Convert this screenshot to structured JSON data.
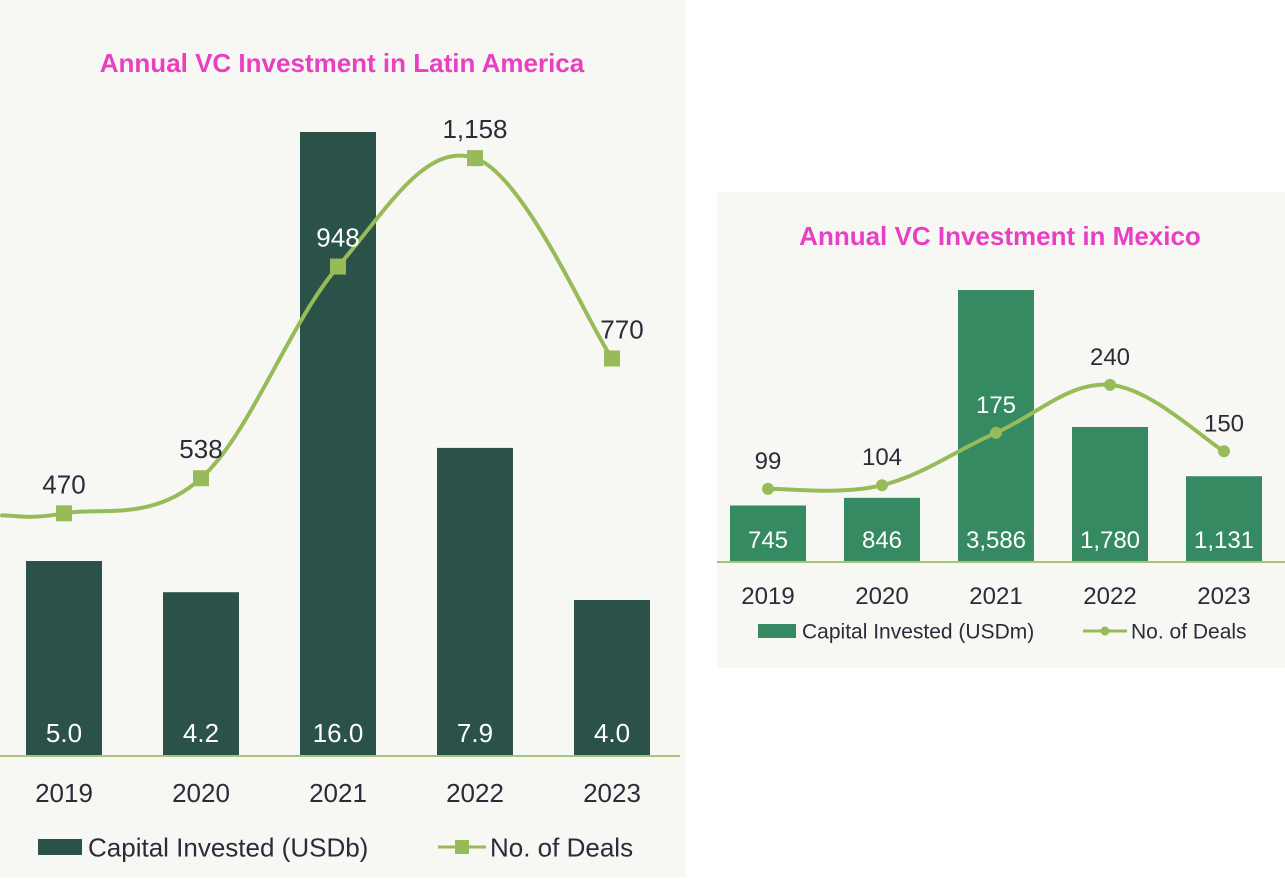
{
  "colors": {
    "title": "#e83fc3",
    "latam_bar": "#2a5248",
    "mexico_bar": "#358a61",
    "deals_line": "#97bb59",
    "panel_bg": "#f7f8f4",
    "axis": "#a9c27b",
    "text_dark": "#2b2b3a",
    "text_on_bar": "#ffffff"
  },
  "chart_data": [
    {
      "type": "bar",
      "title": "Annual VC Investment in Latin America",
      "categories": [
        "2019",
        "2020",
        "2021",
        "2022",
        "2023"
      ],
      "series": [
        {
          "name": "Capital Invested (USDb)",
          "type": "bar",
          "values": [
            5.0,
            4.2,
            16.0,
            7.9,
            4.0
          ],
          "value_labels": [
            "5.0",
            "4.2",
            "16.0",
            "7.9",
            "4.0"
          ],
          "color": "#2a5248"
        },
        {
          "name": "No. of Deals",
          "type": "line",
          "marker": "square",
          "smooth": true,
          "values": [
            470,
            538,
            948,
            1158,
            770
          ],
          "value_labels": [
            "470",
            "538",
            "948",
            "1,158",
            "770"
          ],
          "color": "#97bb59"
        }
      ],
      "bar_ylim": [
        0,
        16.0
      ],
      "line_ylim": [
        0,
        1350
      ],
      "legend": "bottom",
      "grid": false
    },
    {
      "type": "bar",
      "title": "Annual VC Investment in Mexico",
      "categories": [
        "2019",
        "2020",
        "2021",
        "2022",
        "2023"
      ],
      "series": [
        {
          "name": "Capital Invested (USDm)",
          "type": "bar",
          "values": [
            745,
            846,
            3586,
            1780,
            1131
          ],
          "value_labels": [
            "745",
            "846",
            "3,586",
            "1,780",
            "1,131"
          ],
          "color": "#358a61"
        },
        {
          "name": "No. of Deals",
          "type": "line",
          "marker": "circle",
          "smooth": true,
          "values": [
            99,
            104,
            175,
            240,
            150
          ],
          "value_labels": [
            "99",
            "104",
            "175",
            "240",
            "150"
          ],
          "color": "#97bb59"
        }
      ],
      "bar_ylim": [
        0,
        3586
      ],
      "line_ylim": [
        0,
        340
      ],
      "legend": "bottom",
      "grid": false
    }
  ]
}
